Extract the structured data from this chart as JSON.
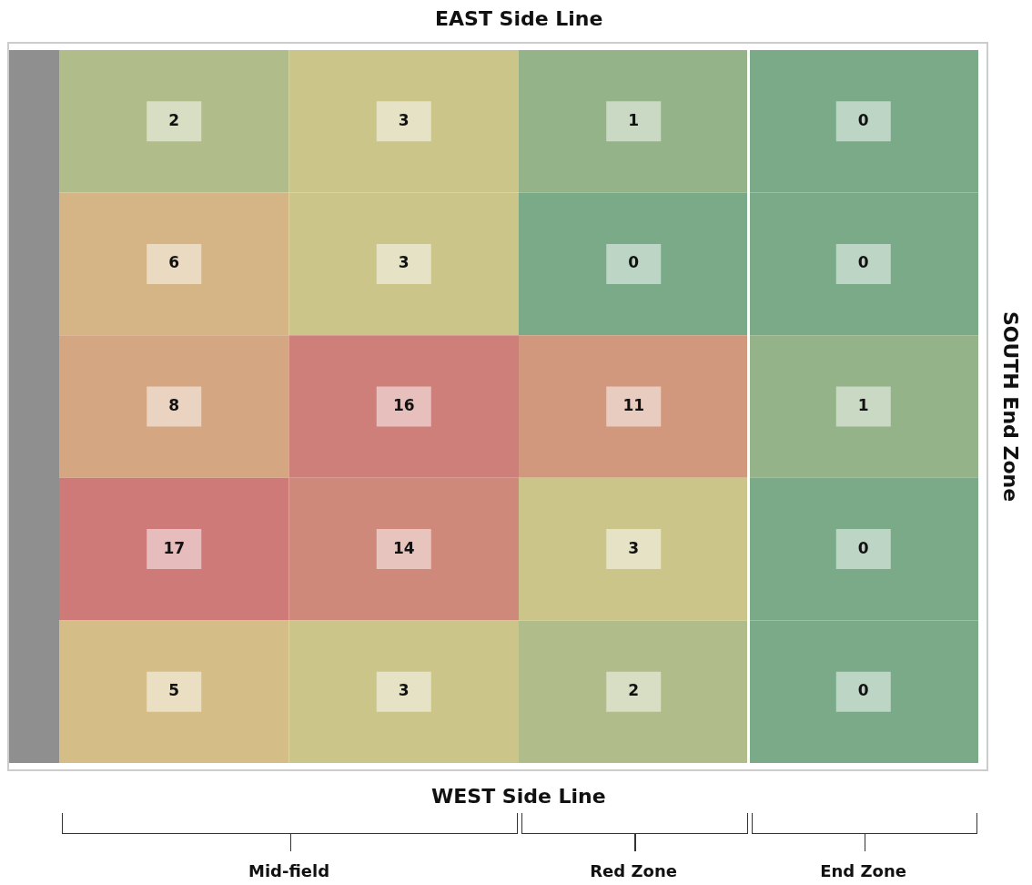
{
  "chart_data": {
    "type": "heatmap",
    "categories": [
      null,
      null,
      null,
      null
    ],
    "y_categories": [
      null,
      null,
      null,
      null,
      null
    ],
    "cells": [
      [
        2,
        3,
        1,
        0
      ],
      [
        6,
        3,
        0,
        0
      ],
      [
        8,
        16,
        11,
        1
      ],
      [
        17,
        14,
        3,
        0
      ],
      [
        5,
        3,
        2,
        0
      ]
    ],
    "data_labels": true,
    "annotations": [
      "EAST Side Line",
      "WEST Side Line",
      "SOUTH End Zone",
      "Mid-field",
      "Red Zone",
      "End Zone"
    ]
  }
}
